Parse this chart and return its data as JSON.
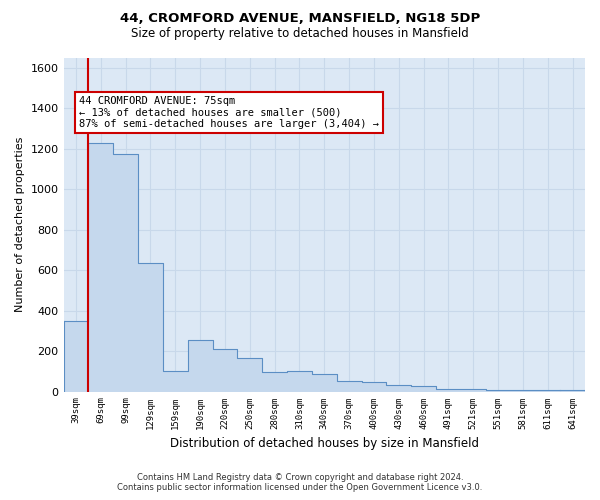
{
  "title1": "44, CROMFORD AVENUE, MANSFIELD, NG18 5DP",
  "title2": "Size of property relative to detached houses in Mansfield",
  "xlabel": "Distribution of detached houses by size in Mansfield",
  "ylabel": "Number of detached properties",
  "categories": [
    "39sqm",
    "69sqm",
    "99sqm",
    "129sqm",
    "159sqm",
    "190sqm",
    "220sqm",
    "250sqm",
    "280sqm",
    "310sqm",
    "340sqm",
    "370sqm",
    "400sqm",
    "430sqm",
    "460sqm",
    "491sqm",
    "521sqm",
    "551sqm",
    "581sqm",
    "611sqm",
    "641sqm"
  ],
  "values": [
    350,
    1230,
    1175,
    635,
    100,
    255,
    210,
    165,
    95,
    100,
    85,
    50,
    45,
    30,
    25,
    14,
    14,
    8,
    8,
    8,
    8
  ],
  "bar_color": "#c5d8ed",
  "bar_edge_color": "#5b8ec4",
  "property_line_color": "#cc0000",
  "annotation_text": "44 CROMFORD AVENUE: 75sqm\n← 13% of detached houses are smaller (500)\n87% of semi-detached houses are larger (3,404) →",
  "annotation_box_color": "#ffffff",
  "annotation_box_edge_color": "#cc0000",
  "ylim": [
    0,
    1650
  ],
  "yticks": [
    0,
    200,
    400,
    600,
    800,
    1000,
    1200,
    1400,
    1600
  ],
  "grid_color": "#c8d8ea",
  "background_color": "#dce8f5",
  "footer1": "Contains HM Land Registry data © Crown copyright and database right 2024.",
  "footer2": "Contains public sector information licensed under the Open Government Licence v3.0."
}
